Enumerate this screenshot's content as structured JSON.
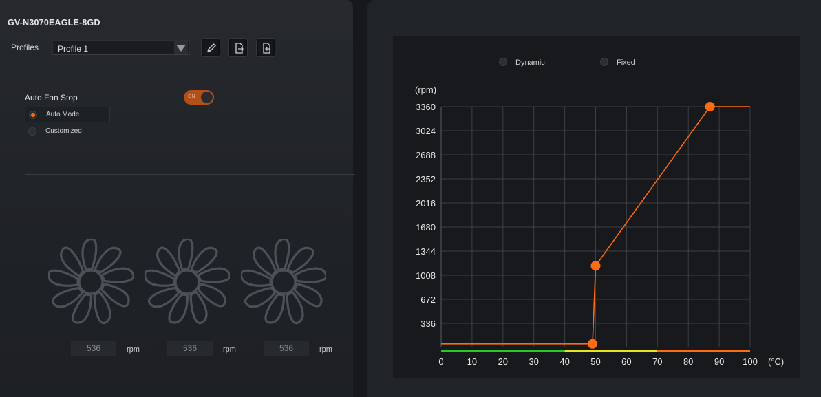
{
  "device": {
    "title": "GV-N3070EAGLE-8GD"
  },
  "profiles": {
    "label": "Profiles",
    "selected": "Profile 1"
  },
  "toolbar": {
    "edit_icon": "pencil-icon",
    "export_icon": "file-export-icon",
    "import_icon": "file-import-icon"
  },
  "auto_fan_stop": {
    "label": "Auto Fan Stop",
    "toggle_text": "ON",
    "toggle_state": "on"
  },
  "fan_modes": [
    {
      "label": "Auto Mode",
      "selected": true
    },
    {
      "label": "Customized",
      "selected": false
    }
  ],
  "fans": [
    {
      "speed": "536",
      "unit": "rpm"
    },
    {
      "speed": "536",
      "unit": "rpm"
    },
    {
      "speed": "536",
      "unit": "rpm"
    }
  ],
  "curve_modes": [
    {
      "label": "Dynamic",
      "selected": false
    },
    {
      "label": "Fixed",
      "selected": false
    }
  ],
  "colors": {
    "accent": "#ff6a13",
    "green_zone": "#22cc22",
    "yellow_zone": "#e6e61a",
    "orange_zone": "#ff6a13"
  },
  "chart_data": {
    "type": "line",
    "ylabel": "(rpm)",
    "xlabel": "(°C)",
    "x_ticks": [
      0,
      10,
      20,
      30,
      40,
      50,
      60,
      70,
      80,
      90,
      100
    ],
    "y_ticks": [
      336,
      672,
      1008,
      1344,
      1680,
      2016,
      2352,
      2688,
      3024,
      3360
    ],
    "xlim": [
      0,
      100
    ],
    "ylim": [
      0,
      3360
    ],
    "grid": true,
    "series": [
      {
        "x": [
          0,
          49,
          50,
          87,
          100
        ],
        "y": [
          50,
          50,
          1140,
          3360,
          3360
        ]
      }
    ],
    "control_points": [
      {
        "x": 49,
        "y": 50
      },
      {
        "x": 50,
        "y": 1140
      },
      {
        "x": 87,
        "y": 3360
      }
    ],
    "temperature_zones": [
      {
        "from": 0,
        "to": 40,
        "color": "#22cc22"
      },
      {
        "from": 40,
        "to": 70,
        "color": "#e6e61a"
      },
      {
        "from": 70,
        "to": 100,
        "color": "#ff6a13"
      }
    ]
  }
}
